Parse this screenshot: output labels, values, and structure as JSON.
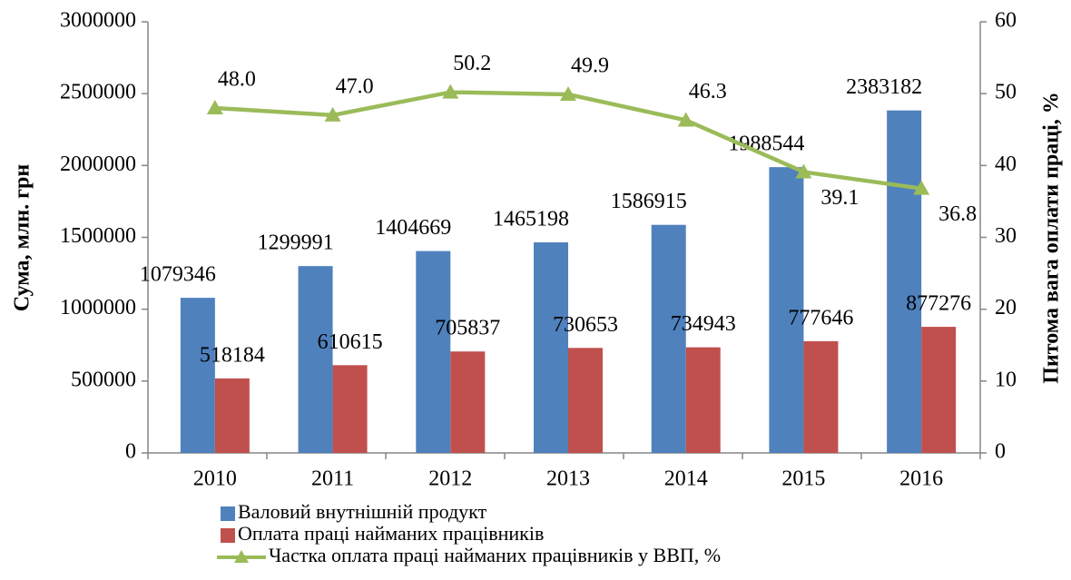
{
  "chart_data": {
    "type": "bar",
    "categories": [
      "2010",
      "2011",
      "2012",
      "2013",
      "2014",
      "2015",
      "2016"
    ],
    "series": [
      {
        "name": "Валовий внутнішній продукт",
        "color": "#4f81bd",
        "values": [
          1079346,
          1299991,
          1404669,
          1465198,
          1586915,
          1988544,
          2383182
        ]
      },
      {
        "name": "Оплата праці найманих працівників",
        "color": "#c0504d",
        "values": [
          518184,
          610615,
          705837,
          730653,
          734943,
          777646,
          877276
        ]
      },
      {
        "name": "Частка оплата праці найманих працівників у ВВП, %",
        "color": "#9bbb59",
        "type": "line",
        "axis": "y2",
        "values": [
          48.0,
          47.0,
          50.2,
          49.9,
          46.3,
          39.1,
          36.8
        ],
        "value_labels": [
          "48.0",
          "47.0",
          "50.2",
          "49.9",
          "46.3",
          "39.1",
          "36.8"
        ]
      }
    ],
    "ylabel": "Сума, млн. грн",
    "y2label": "Питома вага оплати праці, %",
    "ylim": [
      0,
      3000000
    ],
    "yticks": [
      0,
      500000,
      1000000,
      1500000,
      2000000,
      2500000,
      3000000
    ],
    "y2lim": [
      0,
      60
    ],
    "y2ticks": [
      0,
      10,
      20,
      30,
      40,
      50,
      60
    ],
    "legend": "bottom"
  }
}
